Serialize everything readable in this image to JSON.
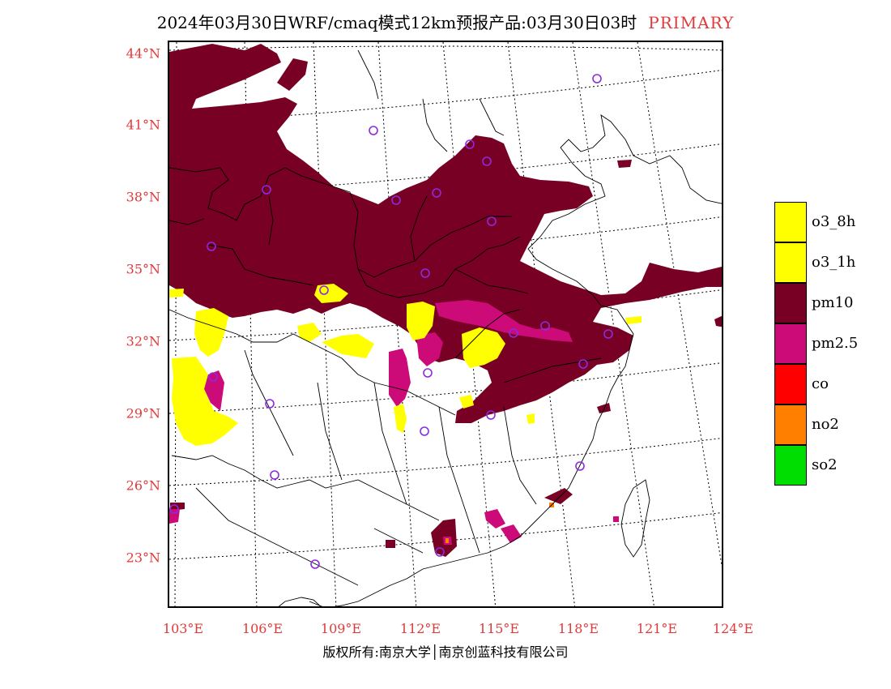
{
  "title": {
    "main": "2024年03月30日WRF/cmaq模式12km预报产品:03月30日03时",
    "tag": "PRIMARY"
  },
  "axes": {
    "lat_labels": [
      "44°N",
      "41°N",
      "38°N",
      "35°N",
      "32°N",
      "29°N",
      "26°N",
      "23°N"
    ],
    "lon_labels": [
      "103°E",
      "106°E",
      "109°E",
      "112°E",
      "115°E",
      "118°E",
      "121°E",
      "124°E"
    ]
  },
  "legend": {
    "items": [
      {
        "label": "o3_8h",
        "color": "#ffff00"
      },
      {
        "label": "o3_1h",
        "color": "#ffff00"
      },
      {
        "label": "pm10",
        "color": "#780024"
      },
      {
        "label": "pm2.5",
        "color": "#cc0a78"
      },
      {
        "label": "co",
        "color": "#ff0000"
      },
      {
        "label": "no2",
        "color": "#ff7f00"
      },
      {
        "label": "so2",
        "color": "#00dd00"
      }
    ]
  },
  "copyright": "版权所有:南京大学│南京创蓝科技有限公司",
  "colors": {
    "pm10": "#780024",
    "pm25": "#cc0a78",
    "o3": "#ffff00",
    "label_red": "#e03a3a",
    "station_marker": "#8a2be2"
  }
}
